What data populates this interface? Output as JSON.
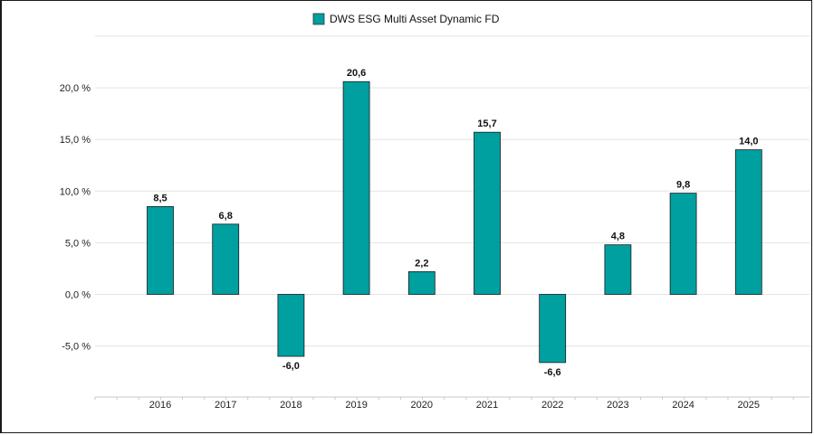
{
  "chart_data": {
    "type": "bar",
    "series": [
      {
        "name": "DWS ESG Multi Asset Dynamic FD",
        "color": "#009fa0",
        "values": [
          8.5,
          6.8,
          -6.0,
          20.6,
          2.2,
          15.7,
          -6.6,
          4.8,
          9.8,
          14.0
        ]
      }
    ],
    "categories": [
      "2016",
      "2017",
      "2018",
      "2019",
      "2020",
      "2021",
      "2022",
      "2023",
      "2024",
      "2025"
    ],
    "value_labels": [
      "8,5",
      "6,8",
      "-6,0",
      "20,6",
      "2,2",
      "15,7",
      "-6,6",
      "4,8",
      "9,8",
      "14,0"
    ],
    "y_ticks": [
      -5,
      0,
      5,
      10,
      15,
      20
    ],
    "y_tick_labels": [
      "-5,0 %",
      "0,0 %",
      "5,0 %",
      "10,0 %",
      "15,0 %",
      "20,0 %"
    ],
    "ylim": [
      -10,
      25
    ],
    "title": "",
    "xlabel": "",
    "ylabel": "",
    "grid": true,
    "legend_position": "top-center"
  }
}
